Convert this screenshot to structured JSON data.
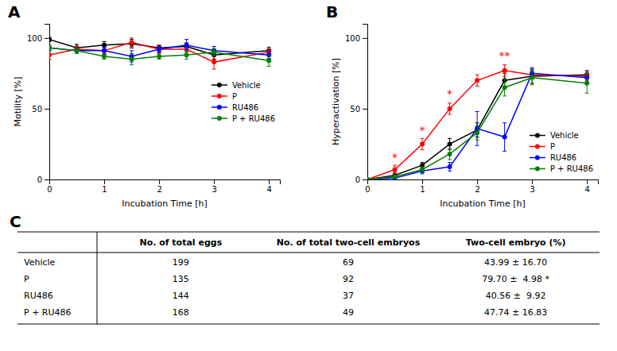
{
  "chart_data": [
    {
      "type": "line",
      "title": "A",
      "xlabel": "Incubation Time [h]",
      "ylabel": "Motility [%]",
      "x": [
        0,
        0.5,
        1,
        1.5,
        2,
        2.5,
        3,
        4
      ],
      "xlim": [
        0,
        4.2
      ],
      "ylim": [
        0,
        110
      ],
      "xticks": [
        0,
        1,
        2,
        3,
        4
      ],
      "yticks": [
        0,
        50,
        100
      ],
      "marker": "circle",
      "grid": false,
      "legend": "right",
      "series": [
        {
          "name": "Vehicle",
          "color": "black",
          "values": [
            99,
            93,
            95,
            96,
            93,
            94,
            88,
            91
          ],
          "errors": [
            1.5,
            2.5,
            2.5,
            3,
            2,
            2.5,
            3,
            2.5
          ]
        },
        {
          "name": "P",
          "color": "red",
          "values": [
            88,
            92,
            91,
            97,
            92,
            92,
            83,
            90
          ],
          "errors": [
            3,
            2,
            2.5,
            3,
            2.5,
            2,
            5,
            2
          ]
        },
        {
          "name": "RU486",
          "color": "blue",
          "values": [
            93,
            91,
            91,
            87,
            92,
            95,
            91,
            88
          ],
          "errors": [
            2,
            2,
            2.5,
            4,
            2,
            4,
            3,
            2.5
          ]
        },
        {
          "name": "P + RU486",
          "color": "green",
          "values": [
            93,
            91,
            87,
            85,
            87,
            88,
            90,
            84
          ],
          "errors": [
            2,
            2,
            2,
            4,
            2,
            3,
            2.5,
            4
          ]
        }
      ]
    },
    {
      "type": "line",
      "title": "B",
      "xlabel": "Incubation Time [h]",
      "ylabel": "Hyperactivation [%]",
      "x": [
        0,
        0.5,
        1,
        1.5,
        2,
        2.5,
        3,
        4
      ],
      "xlim": [
        0,
        4.2
      ],
      "ylim": [
        0,
        110
      ],
      "xticks": [
        0,
        1,
        2,
        3,
        4
      ],
      "yticks": [
        0,
        50,
        100
      ],
      "marker": "circle",
      "grid": false,
      "legend": "lower right",
      "series": [
        {
          "name": "Vehicle",
          "color": "black",
          "values": [
            0,
            3,
            10,
            25,
            35,
            70,
            73,
            74
          ],
          "errors": [
            0,
            2,
            2,
            4,
            5,
            5,
            5,
            3
          ]
        },
        {
          "name": "P",
          "color": "red",
          "values": [
            0,
            7,
            25,
            50,
            70,
            77,
            74,
            73
          ],
          "errors": [
            0,
            3,
            4,
            4,
            4,
            4,
            3,
            3
          ]
        },
        {
          "name": "RU486",
          "color": "blue",
          "values": [
            0,
            1,
            6,
            9,
            36,
            30,
            75,
            72
          ],
          "errors": [
            0,
            1,
            2,
            3,
            12,
            10,
            4,
            3
          ]
        },
        {
          "name": "P + RU486",
          "color": "green",
          "values": [
            0,
            2,
            7,
            18,
            33,
            65,
            72,
            68
          ],
          "errors": [
            0,
            1,
            2,
            4,
            5,
            6,
            5,
            7
          ]
        }
      ],
      "annotations": [
        {
          "x": 0.5,
          "y": 13,
          "text": "*",
          "color": "red"
        },
        {
          "x": 1.0,
          "y": 32,
          "text": "*",
          "color": "red"
        },
        {
          "x": 1.5,
          "y": 58,
          "text": "*",
          "color": "red"
        },
        {
          "x": 2.5,
          "y": 85,
          "text": "**",
          "color": "red"
        }
      ]
    },
    {
      "type": "table",
      "title": "C",
      "headers": [
        null,
        "No. of total eggs",
        "No. of total two-cell embryos",
        "Two-cell embryo (%)"
      ],
      "rows": [
        [
          "Vehicle",
          "199",
          "69",
          "43.99 ± 16.70"
        ],
        [
          "P",
          "135",
          "92",
          "79.70 ±  4.98 *"
        ],
        [
          "RU486",
          "144",
          "37",
          "40.56 ±  9.92"
        ],
        [
          "P + RU486",
          "168",
          "49",
          "47.74 ± 16.83"
        ]
      ]
    }
  ]
}
